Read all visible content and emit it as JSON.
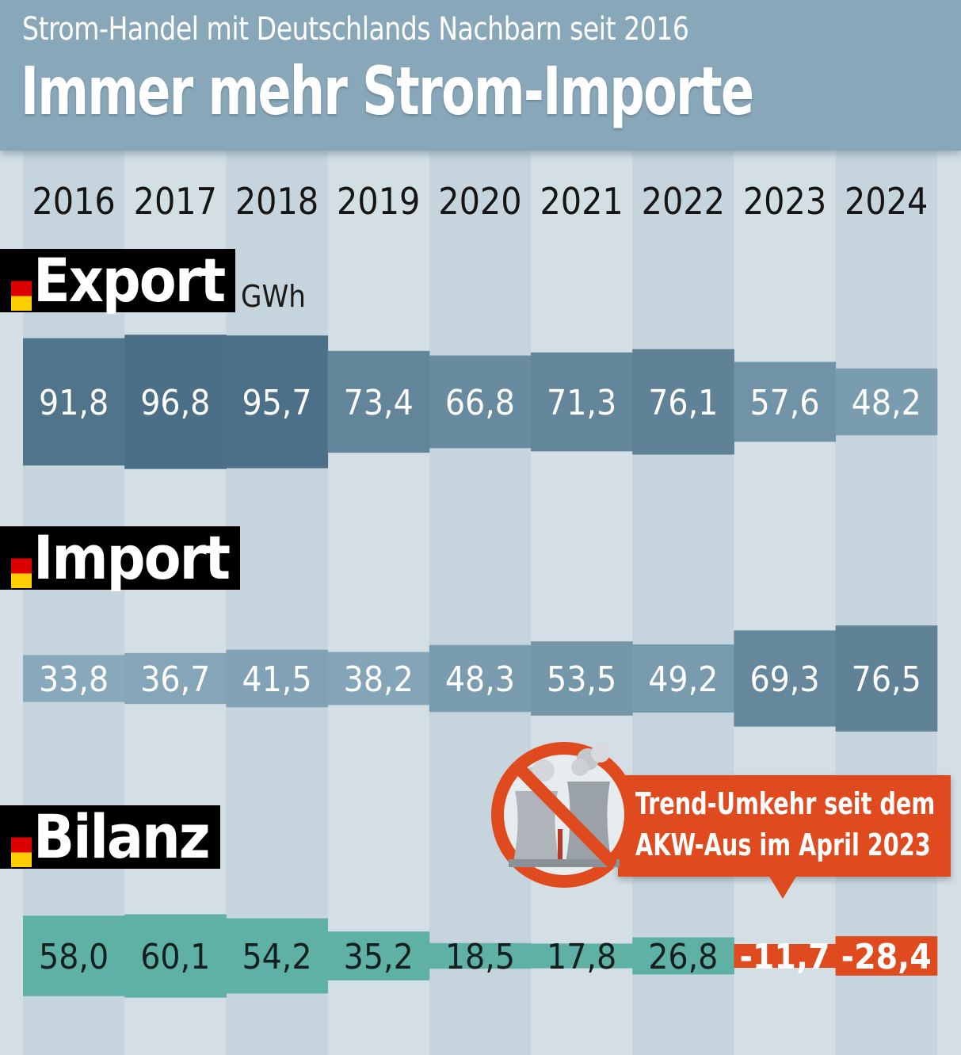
{
  "header": {
    "subtitle": "Strom-Handel mit Deutschlands Nachbarn seit 2016",
    "title": "Immer mehr Strom-Importe"
  },
  "colors": {
    "header_bg": "#88a7b9",
    "background": "#d3dfe5",
    "stripe": "#c6d5dd",
    "bar_dark": "#4b6f86",
    "bar_light": "#88a9bb",
    "balance_positive": "#5fb0a5",
    "balance_negative": "#e04a1f",
    "callout_bg": "#e04a1f",
    "flag": [
      "#000000",
      "#dd0000",
      "#ffce00"
    ]
  },
  "icons": {
    "flag": "german-flag-icon",
    "no_sign": "prohibition-sign-icon",
    "plant": "cooling-tower-icon"
  },
  "chart_data": {
    "type": "bar",
    "unit": "GWh",
    "categories": [
      "2016",
      "2017",
      "2018",
      "2019",
      "2020",
      "2021",
      "2022",
      "2023",
      "2024"
    ],
    "series": [
      {
        "name": "Export",
        "values": [
          91.8,
          96.8,
          95.7,
          73.4,
          66.8,
          71.3,
          76.1,
          57.6,
          48.2
        ],
        "labels": [
          "91,8",
          "96,8",
          "95,7",
          "73,4",
          "66,8",
          "71,3",
          "76,1",
          "57,6",
          "48,2"
        ]
      },
      {
        "name": "Import",
        "values": [
          33.8,
          36.7,
          41.5,
          38.2,
          48.3,
          53.5,
          49.2,
          69.3,
          76.5
        ],
        "labels": [
          "33,8",
          "36,7",
          "41,5",
          "38,2",
          "48,3",
          "53,5",
          "49,2",
          "69,3",
          "76,5"
        ]
      },
      {
        "name": "Bilanz",
        "values": [
          58.0,
          60.1,
          54.2,
          35.2,
          18.5,
          17.8,
          26.8,
          -11.7,
          -28.4
        ],
        "labels": [
          "58,0",
          "60,1",
          "54,2",
          "35,2",
          "18,5",
          "17,8",
          "26,8",
          "-11,7",
          "-28,4"
        ]
      }
    ],
    "annotation": {
      "lines": [
        "Trend-Umkehr seit dem",
        "AKW-Aus im April 2023"
      ]
    }
  }
}
